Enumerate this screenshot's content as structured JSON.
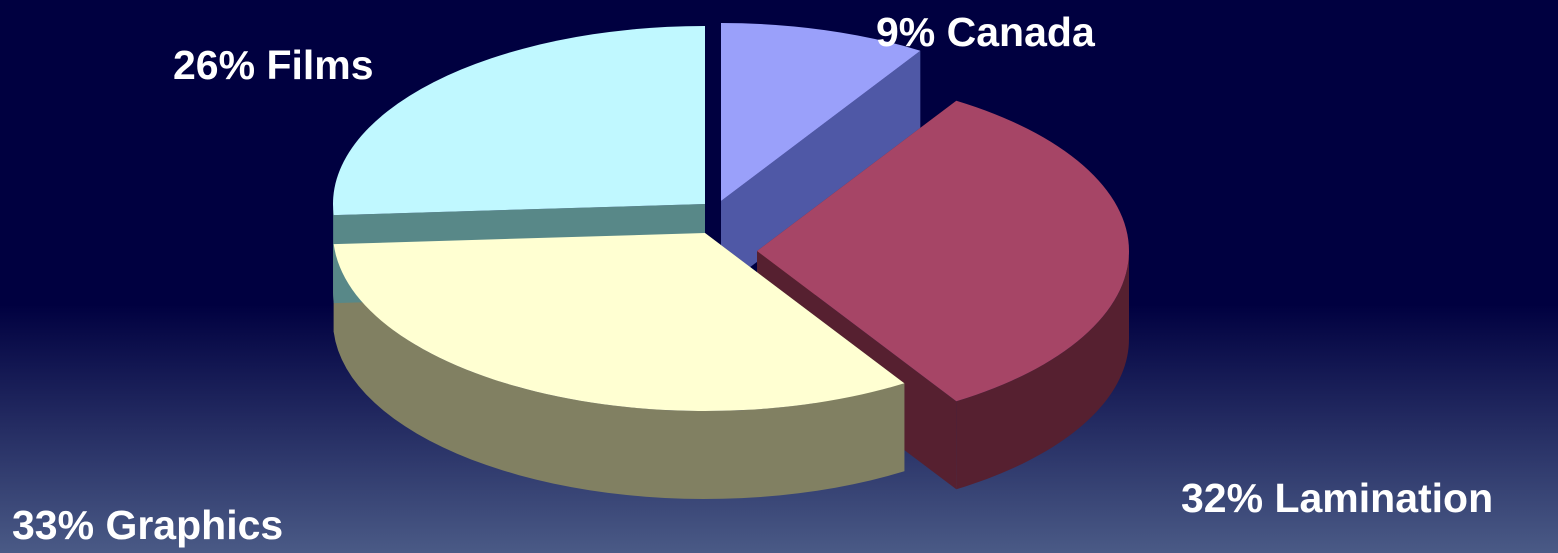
{
  "chart_data": {
    "type": "pie",
    "title": "",
    "style": "3d-exploded",
    "start": "top-center",
    "direction": "clockwise",
    "slices": [
      {
        "label": "9% Canada",
        "value": 9,
        "top_color": "#9aa0fa",
        "side_color": "#4f58a6"
      },
      {
        "label": "32% Lamination",
        "value": 32,
        "top_color": "#a64566",
        "side_color": "#562030"
      },
      {
        "label": "33% Graphics",
        "value": 33,
        "top_color": "#ffffd2",
        "side_color": "#818062"
      },
      {
        "label": "26% Films",
        "value": 26,
        "top_color": "#c0f8ff",
        "side_color": "#588888"
      }
    ],
    "background": {
      "top_color": "#000040",
      "bottom_color": "#4a5a86"
    }
  }
}
